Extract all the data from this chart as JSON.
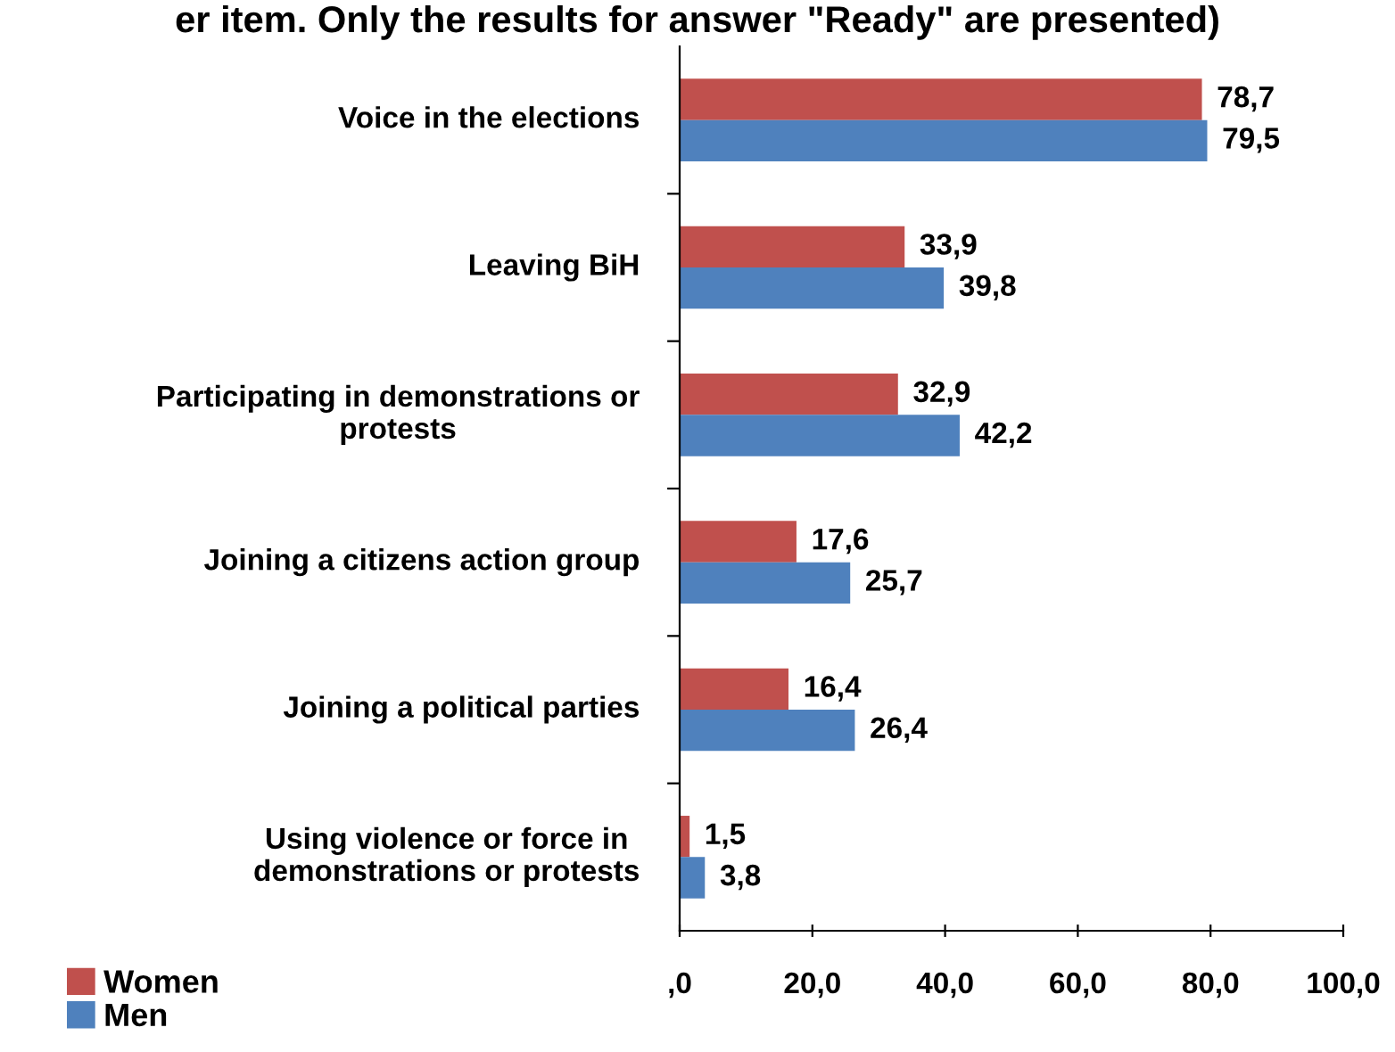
{
  "chart_data": {
    "type": "bar",
    "orientation": "horizontal",
    "title": "er item. Only the results for answer \"Ready\" are presented)",
    "categories": [
      "Voice in the elections",
      "Leaving BiH",
      "Participating in demonstrations or\nprotests",
      "Joining a citizens action group",
      "Joining a political parties",
      "Using violence or force in\ndemonstrations or protests"
    ],
    "series": [
      {
        "name": "Women",
        "color": "#c0504d",
        "values": [
          78.7,
          33.9,
          32.9,
          17.6,
          16.4,
          1.5
        ],
        "value_labels": [
          "78,7",
          "33,9",
          "32,9",
          "17,6",
          "16,4",
          "1,5"
        ]
      },
      {
        "name": "Men",
        "color": "#4f81bd",
        "values": [
          79.5,
          39.8,
          42.2,
          25.7,
          26.4,
          3.8
        ],
        "value_labels": [
          "79,5",
          "39,8",
          "42,2",
          "25,7",
          "26,4",
          "3,8"
        ]
      }
    ],
    "xlim": [
      0,
      100
    ],
    "xticks": [
      {
        "value": 0,
        "label": ",0"
      },
      {
        "value": 20,
        "label": "20,0"
      },
      {
        "value": 40,
        "label": "40,0"
      },
      {
        "value": 60,
        "label": "60,0"
      },
      {
        "value": 80,
        "label": "80,0"
      },
      {
        "value": 100,
        "label": "100,0"
      }
    ],
    "grid": false,
    "legend": "bottom left"
  }
}
